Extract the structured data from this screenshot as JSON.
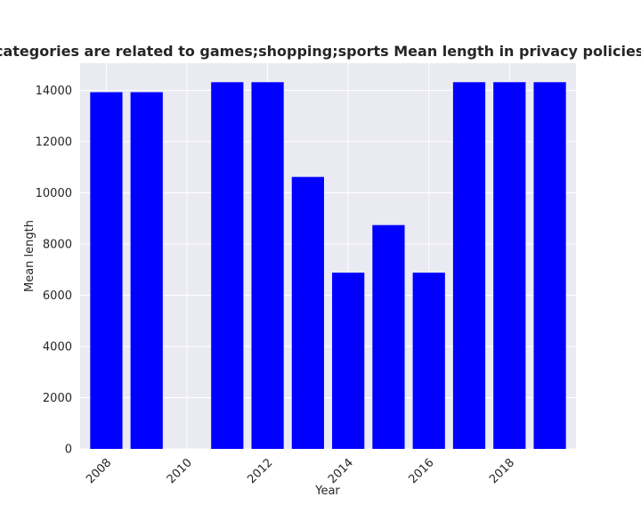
{
  "chart_data": {
    "type": "bar",
    "title": "when categories are related to games;shopping;sports Mean length in privacy policies by Year",
    "xlabel": "Year",
    "ylabel": "Mean length",
    "x": [
      2008,
      2009,
      2011,
      2012,
      2013,
      2014,
      2015,
      2016,
      2017,
      2018,
      2019
    ],
    "values": [
      13930,
      13930,
      14320,
      14320,
      10620,
      6880,
      8740,
      6880,
      14320,
      14320,
      14320
    ],
    "xlim": [
      2007.35,
      2019.65
    ],
    "ylim": [
      0,
      15060
    ],
    "xticks": [
      2008,
      2010,
      2012,
      2014,
      2016,
      2018
    ],
    "yticks": [
      0,
      2000,
      4000,
      6000,
      8000,
      10000,
      12000,
      14000
    ],
    "bar_color": "#0000ff",
    "background_color": "#eaeaf2",
    "grid": true,
    "legend": "none"
  }
}
